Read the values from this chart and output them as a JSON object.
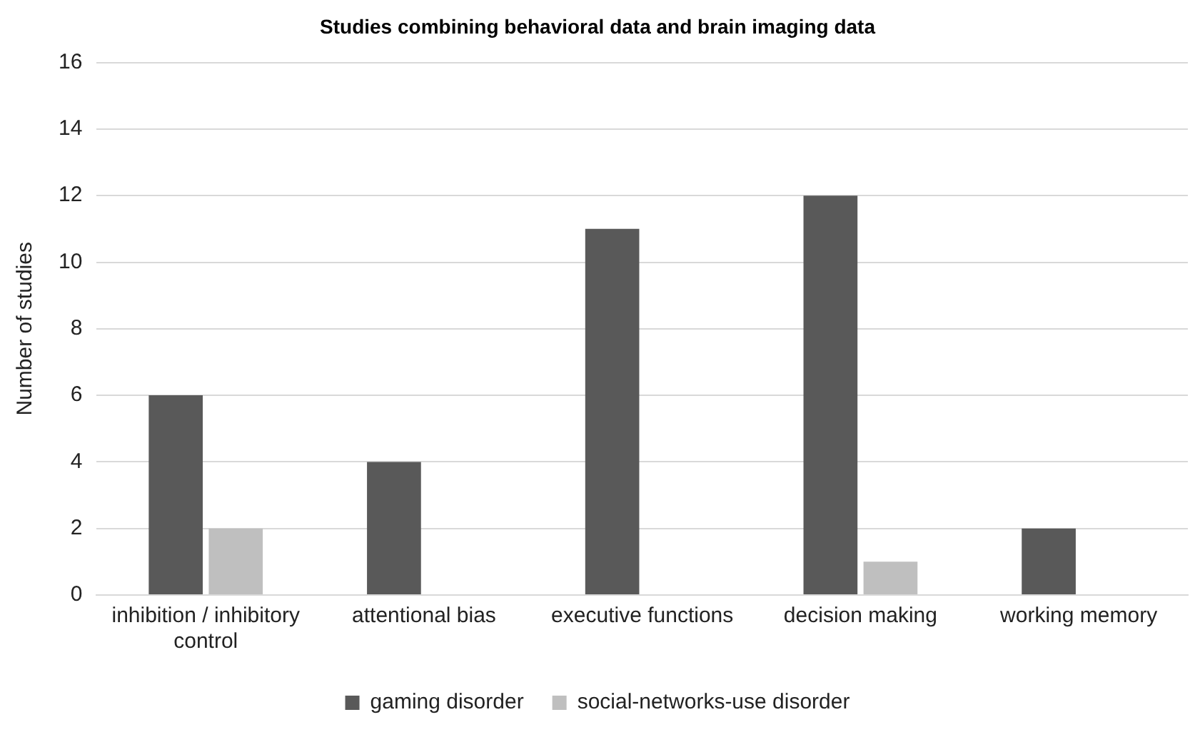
{
  "chart_data": {
    "type": "bar",
    "title": "Studies combining behavioral data and brain imaging data",
    "ylabel": "Number of studies",
    "categories": [
      "inhibition / inhibitory control",
      "attentional bias",
      "executive functions",
      "decision making",
      "working memory"
    ],
    "series": [
      {
        "name": "gaming disorder",
        "color": "#595959",
        "values": [
          6,
          4,
          11,
          12,
          2
        ]
      },
      {
        "name": "social-networks-use disorder",
        "color": "#bfbfbf",
        "values": [
          2,
          0,
          0,
          1,
          0
        ]
      }
    ],
    "ylim": [
      0,
      16
    ],
    "yticks": [
      0,
      2,
      4,
      6,
      8,
      10,
      12,
      14,
      16
    ],
    "grid": "y",
    "legend": "bottom"
  }
}
